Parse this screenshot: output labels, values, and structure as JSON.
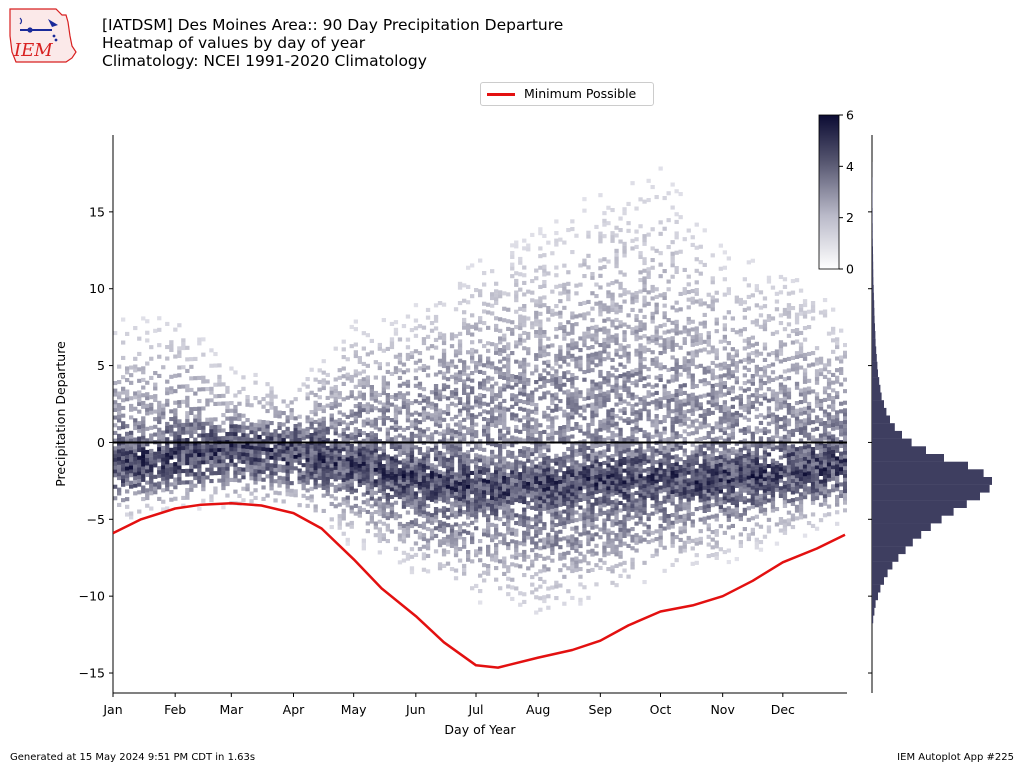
{
  "header": {
    "title_line1": "[IATDSM] Des Moines Area:: 90 Day Precipitation Departure",
    "title_line2": "Heatmap of values by day of year",
    "title_line3": "Climatology: NCEI 1991-2020 Climatology",
    "logo_text": "IEM"
  },
  "legend": {
    "label": "Minimum Possible",
    "color": "#e31010"
  },
  "footer": {
    "generated": "Generated at 15 May 2024 9:51 PM CDT in 1.63s",
    "app": "IEM Autoplot App #225"
  },
  "colors": {
    "heat_max": "#0b0b33",
    "heat_min": "#e6e6ec",
    "hist_fill": "#3e3e60",
    "zero_line": "#000000",
    "min_line": "#e31010"
  },
  "chart_data": {
    "type": "heatmap",
    "xlabel": "Day of Year",
    "ylabel": "Precipitation Departure",
    "x_range": [
      1,
      367
    ],
    "ylim": [
      -16.3,
      20
    ],
    "x_ticks": [
      {
        "label": "Jan",
        "day": 1
      },
      {
        "label": "Feb",
        "day": 32
      },
      {
        "label": "Mar",
        "day": 60
      },
      {
        "label": "Apr",
        "day": 91
      },
      {
        "label": "May",
        "day": 121
      },
      {
        "label": "Jun",
        "day": 152
      },
      {
        "label": "Jul",
        "day": 182
      },
      {
        "label": "Aug",
        "day": 213
      },
      {
        "label": "Sep",
        "day": 244
      },
      {
        "label": "Oct",
        "day": 274
      },
      {
        "label": "Nov",
        "day": 305
      },
      {
        "label": "Dec",
        "day": 335
      }
    ],
    "y_ticks": [
      -15,
      -10,
      -5,
      0,
      5,
      10,
      15
    ],
    "colorbar": {
      "min": 0,
      "max": 6,
      "ticks": [
        0,
        2,
        4,
        6
      ]
    },
    "zero_line": 0,
    "heatmap_envelope": {
      "day": [
        1,
        32,
        60,
        91,
        121,
        152,
        182,
        213,
        244,
        274,
        305,
        335,
        366
      ],
      "low": [
        -5.5,
        -4.5,
        -4.3,
        -4.8,
        -7.0,
        -9.0,
        -10.5,
        -11.5,
        -10.5,
        -9.0,
        -8.0,
        -6.5,
        -5.5
      ],
      "high": [
        8.0,
        8.5,
        5.0,
        4.0,
        8.0,
        9.0,
        12.0,
        14.0,
        16.5,
        18.0,
        12.5,
        12.0,
        8.5
      ],
      "core_low": [
        -3.5,
        -3.0,
        -2.5,
        -2.8,
        -4.0,
        -5.5,
        -6.5,
        -7.0,
        -6.5,
        -5.5,
        -5.0,
        -4.0,
        -3.5
      ],
      "core_high": [
        1.5,
        1.5,
        1.0,
        1.0,
        2.0,
        3.0,
        4.0,
        4.5,
        5.0,
        4.0,
        3.5,
        2.5,
        2.0
      ],
      "mode": [
        -1.5,
        -1.0,
        -0.5,
        -0.8,
        -1.5,
        -2.5,
        -3.0,
        -3.0,
        -2.5,
        -2.5,
        -2.5,
        -2.0,
        -1.5
      ]
    },
    "series": [
      {
        "name": "Minimum Possible",
        "x": [
          1,
          15,
          32,
          45,
          60,
          75,
          91,
          105,
          121,
          135,
          152,
          166,
          182,
          193,
          213,
          230,
          244,
          258,
          274,
          290,
          305,
          320,
          335,
          352,
          366
        ],
        "y": [
          -5.9,
          -5.0,
          -4.3,
          -4.05,
          -3.95,
          -4.1,
          -4.6,
          -5.6,
          -7.6,
          -9.5,
          -11.3,
          -13.0,
          -14.5,
          -14.65,
          -14.0,
          -13.5,
          -12.9,
          -11.9,
          -11.0,
          -10.6,
          -10.0,
          -9.0,
          -7.8,
          -6.9,
          -6.0
        ]
      }
    ],
    "histogram": {
      "bin_width": 0.5,
      "bins_center": [
        -11.5,
        -11,
        -10.5,
        -10,
        -9.5,
        -9,
        -8.5,
        -8,
        -7.5,
        -7,
        -6.5,
        -6,
        -5.5,
        -5,
        -4.5,
        -4,
        -3.5,
        -3,
        -2.5,
        -2,
        -1.5,
        -1,
        -0.5,
        0,
        0.5,
        1,
        1.5,
        2,
        2.5,
        3,
        3.5,
        4,
        4.5,
        5,
        5.5,
        6,
        6.5,
        7,
        7.5,
        8,
        8.5,
        9,
        9.5,
        10,
        10.5,
        11,
        11.5,
        12,
        12.5,
        13,
        13.5,
        14,
        14.5,
        15,
        15.5,
        16,
        16.5,
        17,
        17.5,
        18
      ],
      "counts": [
        0.01,
        0.02,
        0.03,
        0.05,
        0.07,
        0.1,
        0.13,
        0.17,
        0.22,
        0.28,
        0.34,
        0.41,
        0.49,
        0.58,
        0.68,
        0.79,
        0.9,
        0.98,
        1.0,
        0.93,
        0.8,
        0.6,
        0.45,
        0.33,
        0.25,
        0.19,
        0.15,
        0.12,
        0.1,
        0.08,
        0.07,
        0.06,
        0.05,
        0.045,
        0.04,
        0.035,
        0.03,
        0.028,
        0.025,
        0.022,
        0.02,
        0.018,
        0.016,
        0.014,
        0.012,
        0.011,
        0.01,
        0.009,
        0.008,
        0.007,
        0.006,
        0.006,
        0.005,
        0.005,
        0.004,
        0.004,
        0.003,
        0.003,
        0.002,
        0.002
      ]
    }
  }
}
